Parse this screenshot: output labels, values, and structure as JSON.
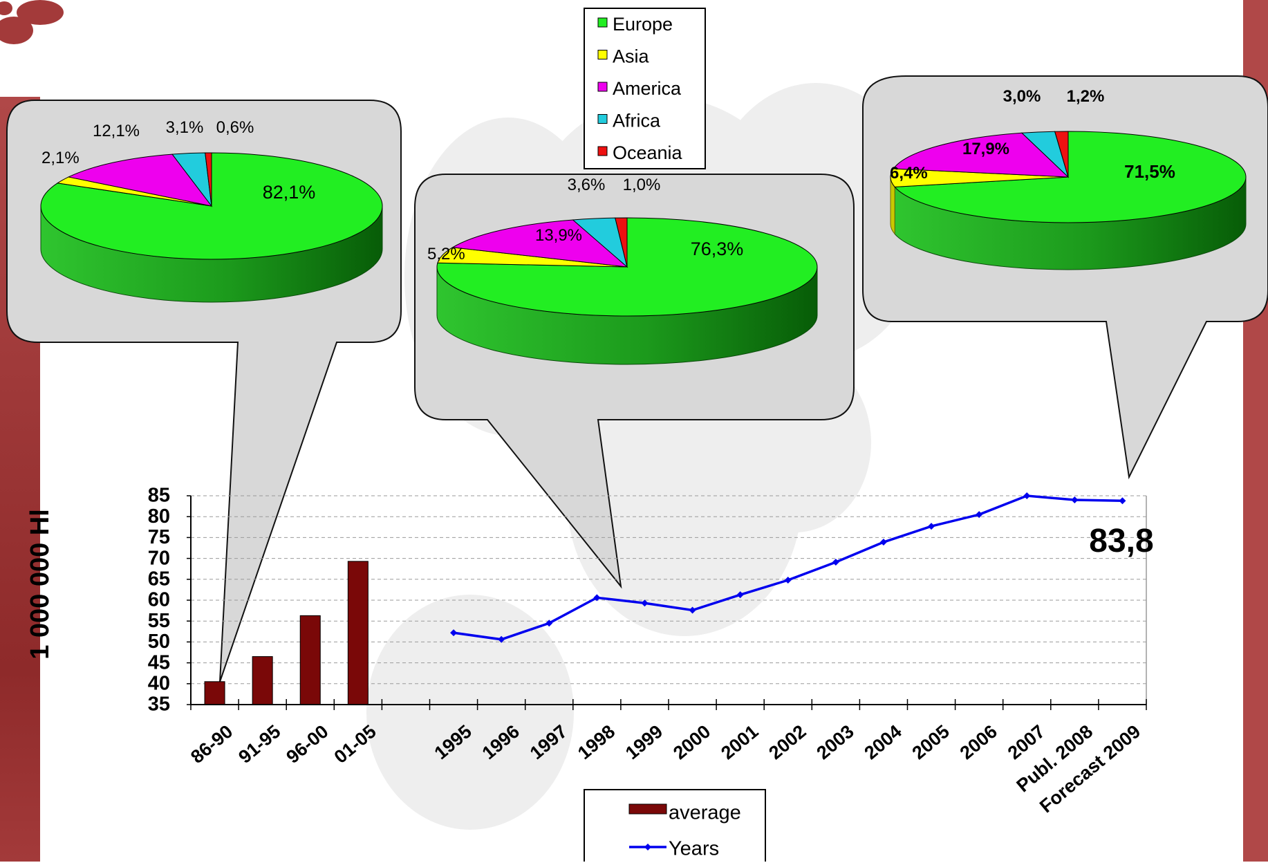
{
  "colors": {
    "Europe": "#22ee22",
    "Asia": "#ffff00",
    "America": "#ee00ee",
    "Africa": "#22ccdd",
    "Oceania": "#ee1111",
    "bar": "#7a0808",
    "line": "#0000ee",
    "page_side": "#a33a3a",
    "bubble": "#d8d8d8"
  },
  "pie_legend": {
    "items": [
      "Europe",
      "Asia",
      "America",
      "Africa",
      "Oceania"
    ]
  },
  "callout_value": "83,8",
  "chart_data": [
    {
      "type": "pie",
      "slices": [
        {
          "label": "Europe",
          "value": 82.1,
          "text": "82,1%"
        },
        {
          "label": "Asia",
          "value": 2.1,
          "text": "2,1%"
        },
        {
          "label": "America",
          "value": 12.1,
          "text": "12,1%"
        },
        {
          "label": "Africa",
          "value": 3.1,
          "text": "3,1%"
        },
        {
          "label": "Oceania",
          "value": 0.6,
          "text": "0,6%"
        }
      ]
    },
    {
      "type": "pie",
      "slices": [
        {
          "label": "Europe",
          "value": 76.3,
          "text": "76,3%"
        },
        {
          "label": "Asia",
          "value": 5.2,
          "text": "5,2%"
        },
        {
          "label": "America",
          "value": 13.9,
          "text": "13,9%"
        },
        {
          "label": "Africa",
          "value": 3.6,
          "text": "3,6%"
        },
        {
          "label": "Oceania",
          "value": 1.0,
          "text": "1,0%"
        }
      ]
    },
    {
      "type": "pie",
      "slices": [
        {
          "label": "Europe",
          "value": 71.5,
          "text": "71,5%"
        },
        {
          "label": "Asia",
          "value": 6.4,
          "text": "6,4%"
        },
        {
          "label": "America",
          "value": 17.9,
          "text": "17,9%"
        },
        {
          "label": "Africa",
          "value": 3.0,
          "text": "3,0%"
        },
        {
          "label": "Oceania",
          "value": 1.2,
          "text": "1,2%"
        }
      ]
    },
    {
      "type": "bar",
      "ylabel": "1 000 000 Hl",
      "ylim": [
        35,
        85
      ],
      "yticks": [
        35,
        40,
        45,
        50,
        55,
        60,
        65,
        70,
        75,
        80,
        85
      ],
      "grid": true,
      "categories": [
        "86-90",
        "91-95",
        "96-00",
        "01-05",
        "",
        "1995",
        "1996",
        "1997",
        "1998",
        "1999",
        "2000",
        "2001",
        "2002",
        "2003",
        "2004",
        "2005",
        "2006",
        "2007",
        "Publ. 2008",
        "Forecast 2009"
      ],
      "series": [
        {
          "name": "average",
          "values": [
            40.5,
            46.5,
            56.3,
            69.3,
            null,
            null,
            null,
            null,
            null,
            null,
            null,
            null,
            null,
            null,
            null,
            null,
            null,
            null,
            null,
            null
          ]
        },
        {
          "name": "Years",
          "values": [
            null,
            null,
            null,
            null,
            null,
            52.2,
            50.6,
            54.5,
            60.6,
            59.3,
            57.6,
            61.3,
            64.8,
            69.1,
            73.9,
            77.7,
            80.5,
            85.0,
            84.0,
            83.8
          ]
        }
      ]
    }
  ]
}
